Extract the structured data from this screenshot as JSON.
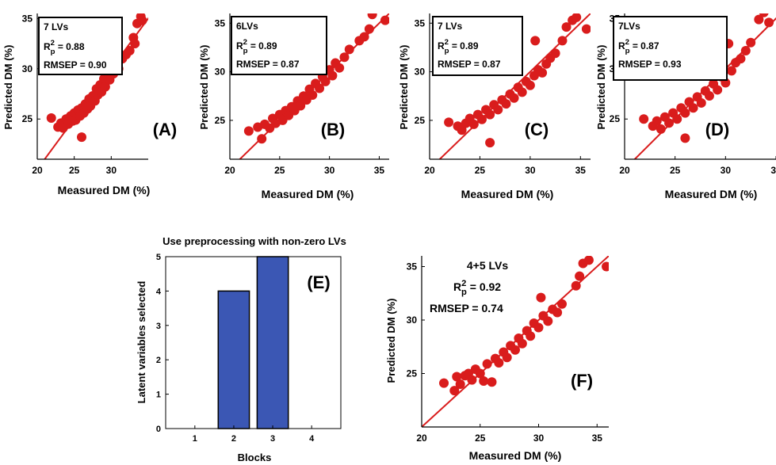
{
  "colors": {
    "scatter_marker": "#d91c1c",
    "fit_line": "#d91c1c",
    "bar_fill": "#3b57b4",
    "axis": "#000000"
  },
  "chart_data": [
    {
      "panel_label": "(A)",
      "type": "scatter",
      "xlabel": "Measured DM (%)",
      "ylabel": "Predicted DM (%)",
      "xlim": [
        20,
        35
      ],
      "ylim": [
        21,
        35.5
      ],
      "xticks": [
        "20",
        "25",
        "30"
      ],
      "yticks": [
        "25",
        "30",
        "35"
      ],
      "stats": {
        "lvs": "7 LVs",
        "r2_value": "= 0.88",
        "rmsep": "RMSEP = 0.90"
      },
      "fit_line": [
        [
          20,
          20
        ],
        [
          35.5,
          35.5
        ]
      ],
      "points": [
        [
          21.9,
          25.1
        ],
        [
          22.8,
          24.2
        ],
        [
          23.2,
          24.6
        ],
        [
          23.5,
          24.1
        ],
        [
          23.9,
          25.0
        ],
        [
          24.2,
          24.5
        ],
        [
          24.5,
          25.3
        ],
        [
          24.8,
          24.8
        ],
        [
          25.0,
          25.6
        ],
        [
          25.2,
          24.9
        ],
        [
          25.5,
          25.9
        ],
        [
          25.8,
          25.3
        ],
        [
          26.0,
          23.2
        ],
        [
          26.0,
          26.1
        ],
        [
          26.3,
          25.6
        ],
        [
          26.5,
          26.5
        ],
        [
          26.8,
          26.0
        ],
        [
          27.0,
          27.0
        ],
        [
          27.2,
          26.3
        ],
        [
          27.5,
          27.3
        ],
        [
          27.8,
          26.8
        ],
        [
          28.0,
          28.0
        ],
        [
          28.2,
          27.4
        ],
        [
          28.5,
          28.4
        ],
        [
          28.7,
          27.7
        ],
        [
          29.0,
          29.0
        ],
        [
          29.2,
          28.2
        ],
        [
          29.5,
          29.6
        ],
        [
          29.8,
          28.9
        ],
        [
          30.0,
          30.0
        ],
        [
          30.3,
          29.5
        ],
        [
          30.5,
          33.2
        ],
        [
          30.8,
          30.4
        ],
        [
          31.0,
          30.0
        ],
        [
          31.5,
          31.0
        ],
        [
          32.0,
          31.4
        ],
        [
          32.5,
          31.8
        ],
        [
          33.0,
          33.1
        ],
        [
          33.5,
          34.5
        ],
        [
          34.0,
          35.2
        ],
        [
          34.2,
          34.8
        ],
        [
          33.2,
          32.5
        ]
      ]
    },
    {
      "panel_label": "(B)",
      "type": "scatter",
      "xlabel": "Measured DM (%)",
      "ylabel": "Predicted DM (%)",
      "xlim": [
        20,
        36
      ],
      "ylim": [
        21,
        36
      ],
      "xticks": [
        "20",
        "25",
        "30",
        "35"
      ],
      "yticks": [
        "25",
        "30",
        "35"
      ],
      "stats": {
        "lvs": "6LVs",
        "r2_value": "= 0.89",
        "rmsep": "RMSEP = 0.87"
      },
      "fit_line": [
        [
          20,
          20
        ],
        [
          36,
          36
        ]
      ],
      "points": [
        [
          21.9,
          23.9
        ],
        [
          22.8,
          24.3
        ],
        [
          23.2,
          23.1
        ],
        [
          23.5,
          24.6
        ],
        [
          24.0,
          24.2
        ],
        [
          24.3,
          25.2
        ],
        [
          24.6,
          24.7
        ],
        [
          25.0,
          25.6
        ],
        [
          25.3,
          25.0
        ],
        [
          25.6,
          26.0
        ],
        [
          25.9,
          25.5
        ],
        [
          26.2,
          26.4
        ],
        [
          26.5,
          26.0
        ],
        [
          26.8,
          27.0
        ],
        [
          27.1,
          26.5
        ],
        [
          27.4,
          27.5
        ],
        [
          27.7,
          27.1
        ],
        [
          28.0,
          28.2
        ],
        [
          28.3,
          27.6
        ],
        [
          28.6,
          28.8
        ],
        [
          29.0,
          28.3
        ],
        [
          29.3,
          29.5
        ],
        [
          29.6,
          29.0
        ],
        [
          30.0,
          30.2
        ],
        [
          30.3,
          29.6
        ],
        [
          30.6,
          30.9
        ],
        [
          31.0,
          30.4
        ],
        [
          31.5,
          31.5
        ],
        [
          32.0,
          32.3
        ],
        [
          33.0,
          33.2
        ],
        [
          33.5,
          33.6
        ],
        [
          34.0,
          34.4
        ],
        [
          34.3,
          35.9
        ],
        [
          35.6,
          35.3
        ]
      ]
    },
    {
      "panel_label": "(C)",
      "type": "scatter",
      "xlabel": "Measured DM (%)",
      "ylabel": "Predicted DM (%)",
      "xlim": [
        20,
        36
      ],
      "ylim": [
        21,
        36
      ],
      "xticks": [
        "20",
        "25",
        "30",
        "35"
      ],
      "yticks": [
        "25",
        "30",
        "35"
      ],
      "stats": {
        "lvs": "7 LVs",
        "r2_value": "= 0.89",
        "rmsep": "RMSEP = 0.87"
      },
      "fit_line": [
        [
          20,
          20
        ],
        [
          36,
          36
        ]
      ],
      "points": [
        [
          21.9,
          24.8
        ],
        [
          22.8,
          24.4
        ],
        [
          23.2,
          24.0
        ],
        [
          23.6,
          24.7
        ],
        [
          24.0,
          25.2
        ],
        [
          24.4,
          24.6
        ],
        [
          24.8,
          25.6
        ],
        [
          25.2,
          25.1
        ],
        [
          25.6,
          26.1
        ],
        [
          26.0,
          22.7
        ],
        [
          26.0,
          25.6
        ],
        [
          26.4,
          26.6
        ],
        [
          26.8,
          26.1
        ],
        [
          27.2,
          27.1
        ],
        [
          27.6,
          26.7
        ],
        [
          28.0,
          27.7
        ],
        [
          28.4,
          27.3
        ],
        [
          28.8,
          28.4
        ],
        [
          29.2,
          27.9
        ],
        [
          29.6,
          29.0
        ],
        [
          30.0,
          28.6
        ],
        [
          30.4,
          29.6
        ],
        [
          30.5,
          33.2
        ],
        [
          30.8,
          30.2
        ],
        [
          31.2,
          29.9
        ],
        [
          31.6,
          30.8
        ],
        [
          32.0,
          31.4
        ],
        [
          32.5,
          31.9
        ],
        [
          33.2,
          33.2
        ],
        [
          33.6,
          34.6
        ],
        [
          34.2,
          35.3
        ],
        [
          34.6,
          35.6
        ],
        [
          35.6,
          34.4
        ]
      ]
    },
    {
      "panel_label": "(D)",
      "type": "scatter",
      "xlabel": "Measured DM (%)",
      "ylabel": "Predicted DM (%)",
      "xlim": [
        20,
        35
      ],
      "ylim": [
        21,
        35.5
      ],
      "xticks": [
        "20",
        "25",
        "30",
        "35"
      ],
      "yticks": [
        "25",
        "30",
        "35"
      ],
      "stats": {
        "lvs": "7LVs",
        "r2_value": "= 0.87",
        "rmsep": "RMSEP = 0.93"
      },
      "fit_line": [
        [
          20,
          20
        ],
        [
          35.5,
          35.5
        ]
      ],
      "points": [
        [
          21.9,
          25.0
        ],
        [
          22.8,
          24.3
        ],
        [
          23.2,
          24.8
        ],
        [
          23.6,
          24.0
        ],
        [
          24.0,
          25.2
        ],
        [
          24.4,
          24.6
        ],
        [
          24.8,
          25.6
        ],
        [
          25.2,
          25.0
        ],
        [
          25.6,
          26.1
        ],
        [
          26.0,
          23.1
        ],
        [
          26.0,
          25.6
        ],
        [
          26.4,
          26.7
        ],
        [
          26.8,
          26.1
        ],
        [
          27.2,
          27.2
        ],
        [
          27.6,
          26.6
        ],
        [
          28.0,
          27.8
        ],
        [
          28.4,
          27.3
        ],
        [
          28.8,
          28.5
        ],
        [
          29.2,
          27.9
        ],
        [
          29.6,
          29.2
        ],
        [
          30.0,
          28.6
        ],
        [
          30.3,
          32.5
        ],
        [
          30.6,
          29.8
        ],
        [
          31.0,
          30.6
        ],
        [
          31.5,
          31.0
        ],
        [
          32.0,
          31.8
        ],
        [
          32.5,
          32.6
        ],
        [
          33.3,
          34.9
        ],
        [
          33.8,
          35.6
        ],
        [
          34.3,
          34.6
        ]
      ]
    },
    {
      "panel_label": "(E)",
      "type": "bar",
      "title": "Use preprocessing with non-zero LVs",
      "xlabel": "Blocks",
      "ylabel": "Latent variables selected",
      "categories": [
        "1",
        "2",
        "3",
        "4"
      ],
      "values": [
        0,
        4,
        5,
        0
      ],
      "ylim": [
        0,
        5
      ],
      "yticks": [
        "0",
        "1",
        "2",
        "3",
        "4",
        "5"
      ]
    },
    {
      "panel_label": "(F)",
      "type": "scatter",
      "xlabel": "Measured DM (%)",
      "ylabel": "Predicted DM (%)",
      "xlim": [
        20,
        36
      ],
      "ylim": [
        20,
        36
      ],
      "xticks": [
        "20",
        "25",
        "30",
        "35"
      ],
      "yticks": [
        "25",
        "30",
        "35"
      ],
      "stats": {
        "lvs": "4+5 LVs",
        "r2_value": "= 0.92",
        "rmsep": "RMSEP = 0.74"
      },
      "fit_line": [
        [
          20,
          20
        ],
        [
          36,
          36
        ]
      ],
      "points": [
        [
          21.9,
          24.1
        ],
        [
          22.8,
          23.4
        ],
        [
          23.0,
          24.7
        ],
        [
          23.3,
          24.0
        ],
        [
          23.7,
          24.8
        ],
        [
          24.0,
          25.0
        ],
        [
          24.3,
          24.4
        ],
        [
          24.6,
          25.4
        ],
        [
          25.0,
          25.0
        ],
        [
          25.3,
          24.3
        ],
        [
          25.6,
          25.9
        ],
        [
          26.0,
          24.2
        ],
        [
          26.3,
          26.4
        ],
        [
          26.6,
          26.0
        ],
        [
          27.0,
          27.0
        ],
        [
          27.3,
          26.5
        ],
        [
          27.6,
          27.6
        ],
        [
          28.0,
          27.2
        ],
        [
          28.3,
          28.3
        ],
        [
          28.6,
          27.8
        ],
        [
          29.0,
          29.0
        ],
        [
          29.3,
          28.5
        ],
        [
          29.6,
          29.7
        ],
        [
          30.0,
          29.3
        ],
        [
          30.2,
          32.1
        ],
        [
          30.4,
          30.4
        ],
        [
          30.8,
          29.9
        ],
        [
          31.2,
          31.0
        ],
        [
          31.6,
          30.7
        ],
        [
          32.0,
          31.5
        ],
        [
          33.2,
          33.2
        ],
        [
          33.5,
          34.1
        ],
        [
          33.8,
          35.3
        ],
        [
          34.3,
          35.6
        ],
        [
          35.8,
          35.0
        ]
      ]
    }
  ]
}
